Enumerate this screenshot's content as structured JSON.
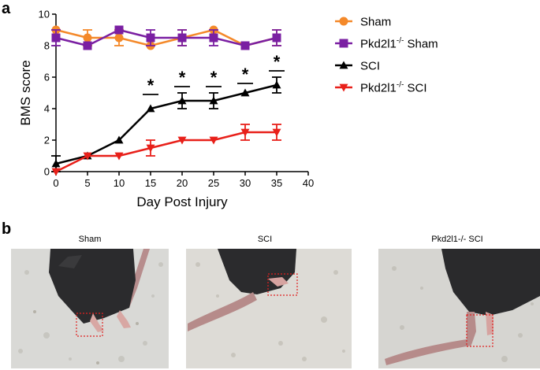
{
  "panel_a": {
    "letter": "a"
  },
  "panel_b": {
    "letter": "b",
    "photos": [
      {
        "label": "Sham"
      },
      {
        "label": "SCI"
      },
      {
        "label": "Pkd2l1-/- SCI"
      }
    ]
  },
  "colors": {
    "sham": "#f4892a",
    "pkd_sham": "#7a1fa2",
    "sci": "#000000",
    "pkd_sci": "#e8201a",
    "roi": "#e02020"
  },
  "chart_data": {
    "type": "line",
    "xlabel": "Day Post Injury",
    "ylabel": "BMS score",
    "xlim": [
      0,
      40
    ],
    "ylim": [
      0,
      10
    ],
    "xticks": [
      0,
      5,
      10,
      15,
      20,
      25,
      30,
      35,
      40
    ],
    "yticks": [
      0,
      2,
      4,
      6,
      8,
      10
    ],
    "x": [
      0,
      5,
      10,
      15,
      20,
      25,
      30,
      35
    ],
    "series": [
      {
        "name": "Sham",
        "name_sup": "",
        "name_suffix": "",
        "marker": "circle",
        "color": "#f4892a",
        "values": [
          9.0,
          8.5,
          8.5,
          8.0,
          8.5,
          9.0,
          8.0,
          8.5
        ],
        "errors": [
          0.0,
          0.5,
          0.5,
          0.0,
          0.5,
          0.0,
          0.0,
          0.5
        ]
      },
      {
        "name": "Pkd2l1",
        "name_sup": "-/-",
        "name_suffix": " Sham",
        "marker": "square",
        "color": "#7a1fa2",
        "values": [
          8.5,
          8.0,
          9.0,
          8.5,
          8.5,
          8.5,
          8.0,
          8.5
        ],
        "errors": [
          0.5,
          0.0,
          0.0,
          0.5,
          0.5,
          0.5,
          0.0,
          0.5
        ]
      },
      {
        "name": "SCI",
        "name_sup": "",
        "name_suffix": "",
        "marker": "triangle-up",
        "color": "#000000",
        "values": [
          0.5,
          1.0,
          2.0,
          4.0,
          4.5,
          4.5,
          5.0,
          5.5
        ],
        "errors": [
          0.5,
          0.0,
          0.0,
          0.0,
          0.5,
          0.5,
          0.0,
          0.5
        ]
      },
      {
        "name": "Pkd2l1",
        "name_sup": "-/-",
        "name_suffix": " SCI",
        "marker": "triangle-down",
        "color": "#e8201a",
        "values": [
          0.0,
          1.0,
          1.0,
          1.5,
          2.0,
          2.0,
          2.5,
          2.5
        ],
        "errors": [
          0.0,
          0.0,
          0.0,
          0.5,
          0.0,
          0.0,
          0.5,
          0.5
        ]
      }
    ],
    "significance": [
      {
        "x": 15,
        "y": 4.9,
        "label": "*"
      },
      {
        "x": 20,
        "y": 5.4,
        "label": "*"
      },
      {
        "x": 25,
        "y": 5.4,
        "label": "*"
      },
      {
        "x": 30,
        "y": 5.6,
        "label": "*"
      },
      {
        "x": 35,
        "y": 6.4,
        "label": "*"
      }
    ]
  }
}
